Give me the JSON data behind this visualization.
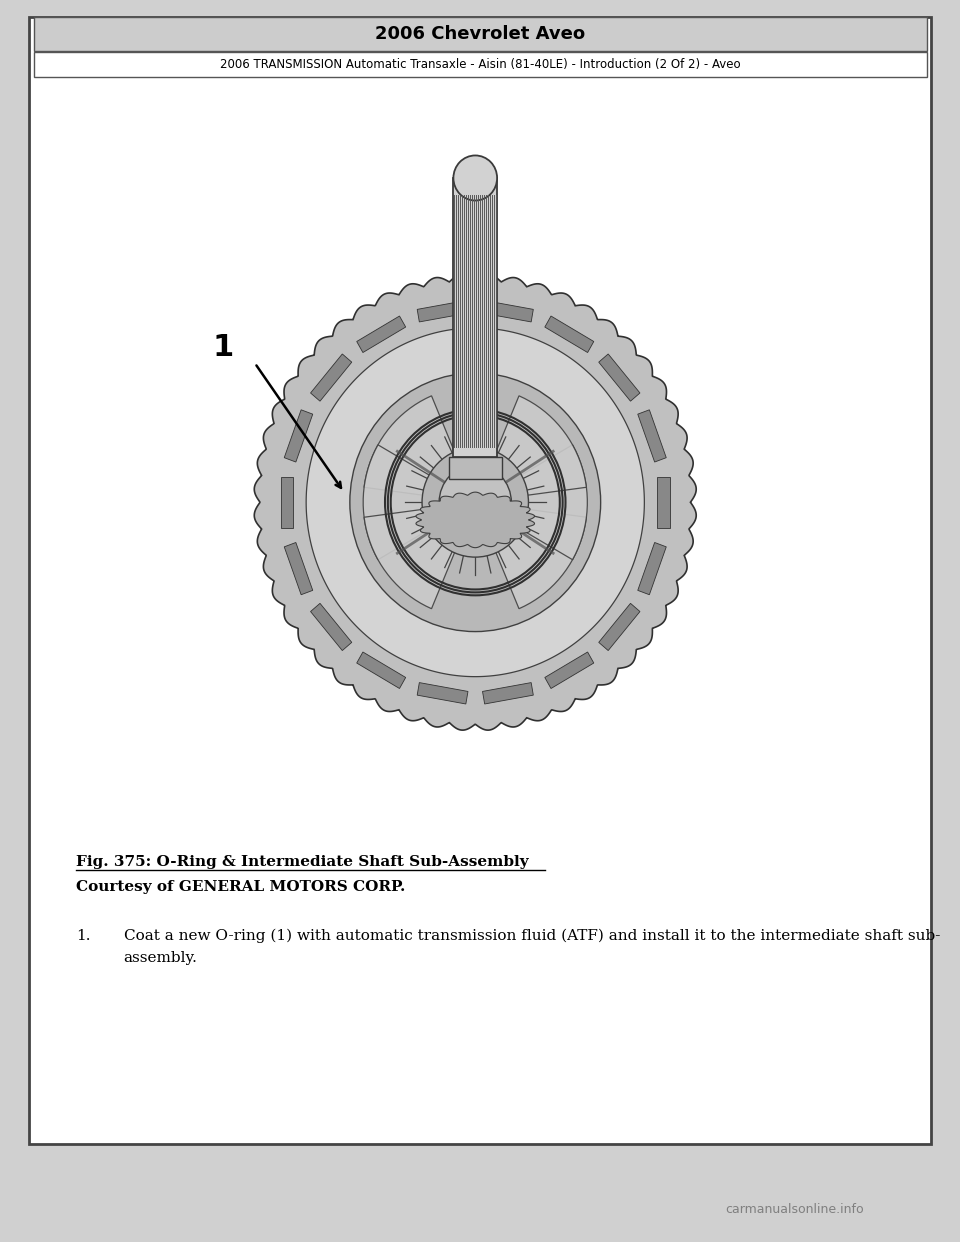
{
  "header_title": "2006 Chevrolet Aveo",
  "header_subtitle": "2006 TRANSMISSION Automatic Transaxle - Aisin (81-40LE) - Introduction (2 Of 2) - Aveo",
  "fig_caption_line1": "Fig. 375: O-Ring & Intermediate Shaft Sub-Assembly",
  "fig_caption_line2": "Courtesy of GENERAL MOTORS CORP.",
  "instruction_number": "1.",
  "instruction_text_line1": "Coat a new O-ring (1) with automatic transmission fluid (ATF) and install it to the intermediate shaft sub-",
  "instruction_text_line2": "assembly.",
  "label_1": "1",
  "watermark": "carmanualsonline.info",
  "bg_color": "#ffffff",
  "header_title_bg": "#cccccc",
  "border_color": "#000000",
  "bottom_bar_color": "#111111",
  "page_bg": "#d0d0d0"
}
